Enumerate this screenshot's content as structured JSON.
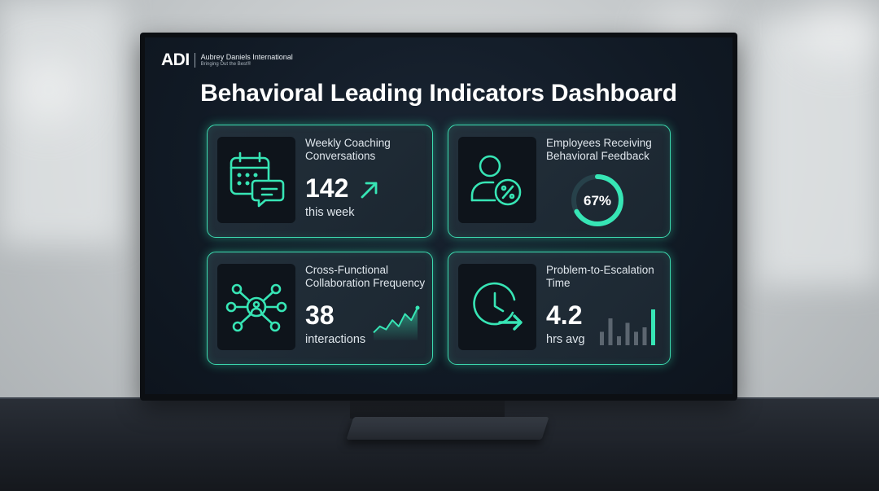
{
  "brand": {
    "logo": "ADI",
    "company": "Aubrey Daniels International",
    "tagline": "Bringing Out the Best®"
  },
  "dashboard": {
    "title": "Behavioral Leading Indicators Dashboard",
    "accent_color": "#37e5b5",
    "cards": [
      {
        "title_line1": "Weekly Coaching",
        "title_line2": "Conversations",
        "value": "142",
        "caption": "this week",
        "trend": "up",
        "icon": "calendar-chat-icon"
      },
      {
        "title_line1": "Employees Receiving",
        "title_line2": "Behavioral Feedback",
        "value": "67%",
        "gauge_fraction": 0.67,
        "icon": "person-percent-icon"
      },
      {
        "title_line1": "Cross-Functional",
        "title_line2": "Collaboration Frequency",
        "value": "38",
        "caption": "interactions",
        "sparkline": [
          2,
          4,
          3,
          6,
          4,
          8,
          6,
          10
        ],
        "icon": "network-icon"
      },
      {
        "title_line1": "Problem-to-Escalation",
        "title_line2": "Time",
        "value": "4.2",
        "caption": "hrs avg",
        "bars": [
          3,
          6,
          2,
          5,
          3,
          4,
          8
        ],
        "icon": "clock-arrow-icon"
      }
    ]
  }
}
